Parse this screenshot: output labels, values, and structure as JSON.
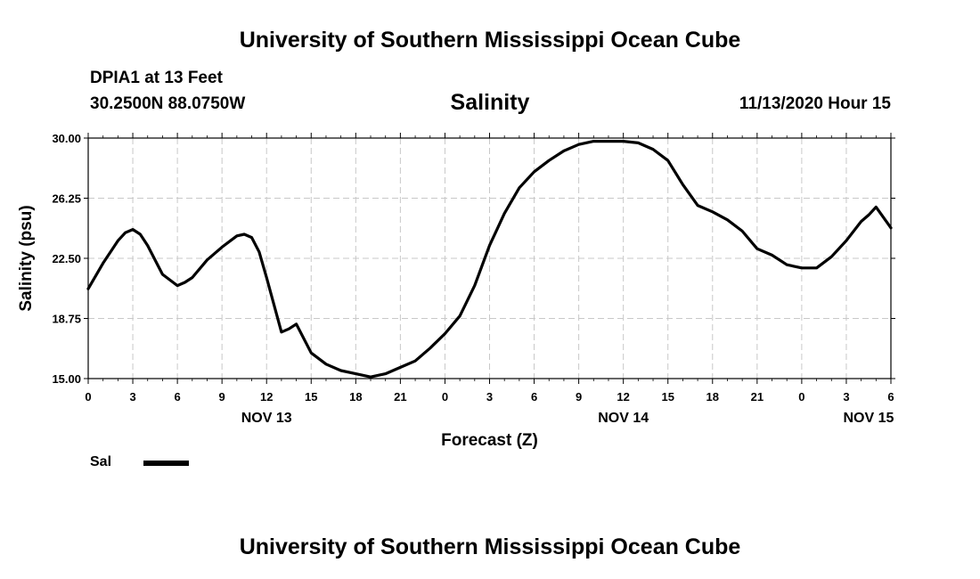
{
  "header": {
    "title": "University of Southern Mississippi Ocean Cube",
    "station": "DPIA1 at 13 Feet",
    "coords": "30.2500N 88.0750W",
    "variable": "Salinity",
    "issued": "11/13/2020 Hour 15"
  },
  "footer": {
    "title": "University of Southern Mississippi Ocean Cube"
  },
  "legend": {
    "label": "Sal",
    "color": "#000000"
  },
  "chart_data": {
    "type": "line",
    "xlabel": "Forecast (Z)",
    "ylabel": "Salinity (psu)",
    "ylim": [
      15.0,
      30.0
    ],
    "yticks": [
      "15.00",
      "18.75",
      "22.50",
      "26.25",
      "30.00"
    ],
    "xlim_hours": [
      0,
      54
    ],
    "xtick_labels": [
      "0",
      "3",
      "6",
      "9",
      "12",
      "15",
      "18",
      "21",
      "0",
      "3",
      "6",
      "9",
      "12",
      "15",
      "18",
      "21",
      "0",
      "3",
      "6"
    ],
    "date_labels": [
      {
        "label": "NOV 13",
        "hour": 12
      },
      {
        "label": "NOV 14",
        "hour": 36
      },
      {
        "label": "NOV 15",
        "hour": 52.5
      }
    ],
    "grid": true,
    "series": [
      {
        "name": "Sal",
        "color": "#000000",
        "x": [
          0,
          1,
          2,
          2.5,
          3,
          3.5,
          4,
          5,
          6,
          6.5,
          7,
          8,
          9,
          10,
          10.5,
          11,
          11.5,
          12,
          13,
          13.5,
          14,
          15,
          16,
          17,
          18,
          19,
          20,
          21,
          22,
          23,
          24,
          25,
          26,
          27,
          28,
          29,
          30,
          31,
          32,
          33,
          34,
          35,
          36,
          37,
          38,
          39,
          40,
          41,
          42,
          43,
          44,
          45,
          46,
          47,
          48,
          49,
          50,
          51,
          52,
          52.5,
          53,
          54
        ],
        "values": [
          20.6,
          22.2,
          23.6,
          24.1,
          24.3,
          24.0,
          23.3,
          21.5,
          20.8,
          21.0,
          21.3,
          22.4,
          23.2,
          23.9,
          24.0,
          23.8,
          22.9,
          21.3,
          17.9,
          18.1,
          18.4,
          16.6,
          15.9,
          15.5,
          15.3,
          15.1,
          15.3,
          15.7,
          16.1,
          16.9,
          17.8,
          18.9,
          20.8,
          23.3,
          25.3,
          26.9,
          27.9,
          28.6,
          29.2,
          29.6,
          29.8,
          29.8,
          29.8,
          29.7,
          29.3,
          28.6,
          27.1,
          25.8,
          25.4,
          24.9,
          24.2,
          23.1,
          22.7,
          22.1,
          21.9,
          21.9,
          22.6,
          23.6,
          24.8,
          25.2,
          25.7,
          24.4
        ]
      }
    ]
  }
}
